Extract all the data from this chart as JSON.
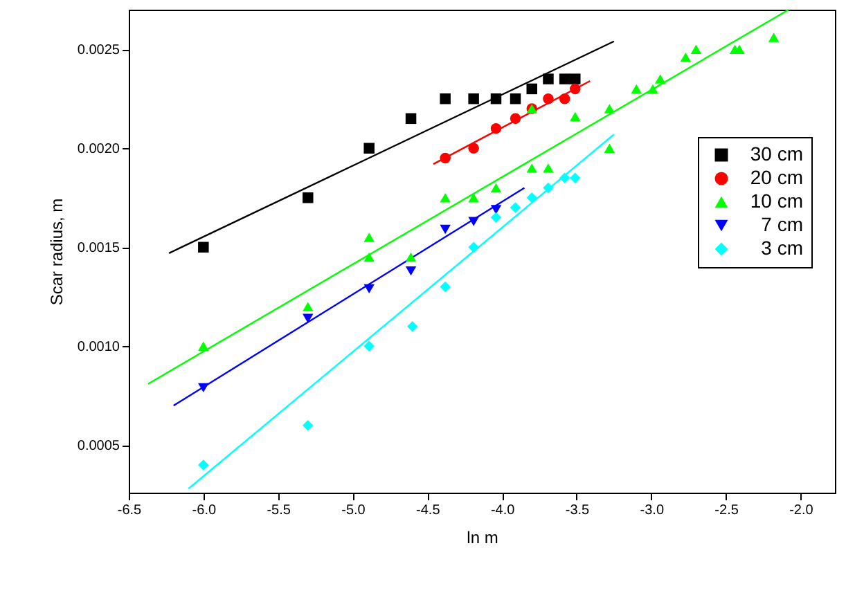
{
  "chart_data": {
    "type": "scatter",
    "xlabel": "ln m",
    "ylabel": "Scar radius, m",
    "xlim": [
      -6.5,
      -1.77
    ],
    "ylim": [
      0.00026,
      0.0027
    ],
    "xticks": [
      {
        "value": -6.5,
        "label": "-6.5"
      },
      {
        "value": -6,
        "label": "-6.0"
      },
      {
        "value": -5.5,
        "label": "-5.5"
      },
      {
        "value": -5,
        "label": "-5.0"
      },
      {
        "value": -4.5,
        "label": "-4.5"
      },
      {
        "value": -4,
        "label": "-4.0"
      },
      {
        "value": -3.5,
        "label": "-3.5"
      },
      {
        "value": -3,
        "label": "-3.0"
      },
      {
        "value": -2.5,
        "label": "-2.5"
      },
      {
        "value": -2,
        "label": "-2.0"
      }
    ],
    "yticks": [
      0.0005,
      {
        "value": 0.001,
        "label": "0.0010"
      },
      0.0015,
      {
        "value": 0.002,
        "label": "0.0020"
      },
      0.0025
    ],
    "grid": false,
    "legend": "right",
    "series": [
      {
        "name": "30 cm",
        "color": "#000000",
        "marker": "square",
        "x": [
          -6.0,
          -5.3,
          -4.89,
          -4.61,
          -4.38,
          -4.19,
          -4.04,
          -3.91,
          -3.8,
          -3.69,
          -3.58,
          -3.51
        ],
        "values": [
          0.0015,
          0.00175,
          0.002,
          0.00215,
          0.00225,
          0.00225,
          0.00225,
          0.00225,
          0.0023,
          0.00235,
          0.00235,
          0.00235
        ]
      },
      {
        "name": "20 cm",
        "color": "#ff0000",
        "marker": "circle",
        "x": [
          -4.38,
          -4.19,
          -4.04,
          -3.91,
          -3.8,
          -3.69,
          -3.58,
          -3.51
        ],
        "values": [
          0.00195,
          0.002,
          0.0021,
          0.00215,
          0.0022,
          0.00225,
          0.00225,
          0.0023
        ]
      },
      {
        "name": "10 cm",
        "color": "#00ff00",
        "marker": "triangle",
        "x": [
          -6.0,
          -5.3,
          -4.89,
          -4.89,
          -4.61,
          -4.38,
          -4.19,
          -4.04,
          -3.8,
          -3.69,
          -3.8,
          -3.51,
          -3.28,
          -3.28,
          -3.1,
          -2.99,
          -2.94,
          -2.77,
          -2.7,
          -2.44,
          -2.41,
          -2.18
        ],
        "values": [
          0.001,
          0.0012,
          0.00155,
          0.00145,
          0.00145,
          0.00175,
          0.00175,
          0.0018,
          0.0019,
          0.0019,
          0.0022,
          0.00216,
          0.0022,
          0.002,
          0.0023,
          0.0023,
          0.00235,
          0.00246,
          0.0025,
          0.0025,
          0.0025,
          0.00256
        ]
      },
      {
        "name": "7 cm",
        "color": "#0000ff",
        "marker": "triangle-down",
        "x": [
          -6.0,
          -5.3,
          -4.89,
          -4.61,
          -4.38,
          -4.19,
          -4.04
        ],
        "values": [
          0.00079,
          0.00114,
          0.00129,
          0.00138,
          0.00159,
          0.00163,
          0.00169
        ]
      },
      {
        "name": "3 cm",
        "color": "#00ffff",
        "marker": "diamond",
        "x": [
          -6.0,
          -5.3,
          -4.89,
          -4.6,
          -4.38,
          -4.19,
          -4.04,
          -3.91,
          -3.8,
          -3.69,
          -3.58,
          -3.51
        ],
        "values": [
          0.0004,
          0.0006,
          0.001,
          0.0011,
          0.0013,
          0.0015,
          0.00165,
          0.0017,
          0.00175,
          0.0018,
          0.00185,
          0.00185
        ]
      },
      {
        "type": "line",
        "color": "#000000",
        "x": [
          -6.23,
          -3.25
        ],
        "values": [
          0.00147,
          0.00254
        ]
      },
      {
        "type": "line",
        "color": "#ff0000",
        "x": [
          -4.46,
          -3.41
        ],
        "values": [
          0.00192,
          0.00234
        ]
      },
      {
        "type": "line",
        "color": "#00ff00",
        "x": [
          -6.37,
          -2.08
        ],
        "values": [
          0.00081,
          0.0027
        ]
      },
      {
        "type": "line",
        "color": "#0000ff",
        "x": [
          -6.2,
          -3.85
        ],
        "values": [
          0.0007,
          0.0018
        ]
      },
      {
        "type": "line",
        "color": "#00ffff",
        "x": [
          -6.1,
          -3.25
        ],
        "values": [
          0.00028,
          0.00207
        ]
      }
    ]
  }
}
